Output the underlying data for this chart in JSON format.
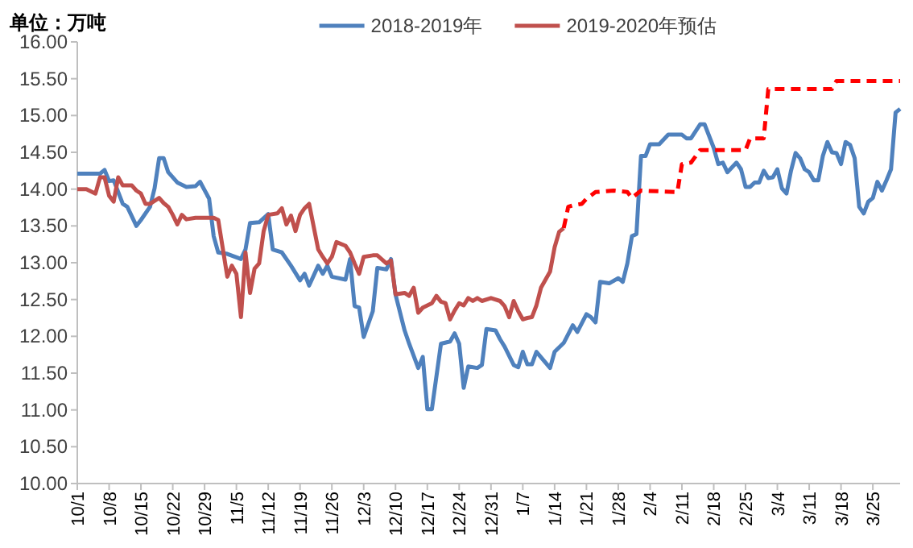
{
  "chart_data": {
    "type": "line",
    "ylabel": "单位：万吨",
    "legend": "top",
    "line_style": "solid",
    "marker": "none",
    "grid": false,
    "xlim": [
      "2018-10-01",
      "2019-03-31"
    ],
    "ylim": [
      10,
      16
    ],
    "yticks": [
      {
        "value": 10,
        "label": "10.00"
      },
      {
        "value": 10.5,
        "label": "10.50"
      },
      {
        "value": 11,
        "label": "11.00"
      },
      {
        "value": 11.5,
        "label": "11.50"
      },
      {
        "value": 12,
        "label": "12.00"
      },
      {
        "value": 12.5,
        "label": "12.50"
      },
      {
        "value": 13,
        "label": "13.00"
      },
      {
        "value": 13.5,
        "label": "13.50"
      },
      {
        "value": 14,
        "label": "14.00"
      },
      {
        "value": 14.5,
        "label": "14.50"
      },
      {
        "value": 15,
        "label": "15.00"
      },
      {
        "value": 15.5,
        "label": "15.50"
      },
      {
        "value": 16,
        "label": "16.00"
      }
    ],
    "xticks": [
      {
        "value": "2018-10-01",
        "label": "10/1"
      },
      {
        "value": "2018-10-08",
        "label": "10/8"
      },
      {
        "value": "2018-10-15",
        "label": "10/15"
      },
      {
        "value": "2018-10-22",
        "label": "10/22"
      },
      {
        "value": "2018-10-29",
        "label": "10/29"
      },
      {
        "value": "2018-11-05",
        "label": "11/5"
      },
      {
        "value": "2018-11-12",
        "label": "11/12"
      },
      {
        "value": "2018-11-19",
        "label": "11/19"
      },
      {
        "value": "2018-11-26",
        "label": "11/26"
      },
      {
        "value": "2018-12-03",
        "label": "12/3"
      },
      {
        "value": "2018-12-10",
        "label": "12/10"
      },
      {
        "value": "2018-12-17",
        "label": "12/17"
      },
      {
        "value": "2018-12-24",
        "label": "12/24"
      },
      {
        "value": "2018-12-31",
        "label": "12/31"
      },
      {
        "value": "2019-01-07",
        "label": "1/7"
      },
      {
        "value": "2019-01-14",
        "label": "1/14"
      },
      {
        "value": "2019-01-21",
        "label": "1/21"
      },
      {
        "value": "2019-01-28",
        "label": "1/28"
      },
      {
        "value": "2019-02-04",
        "label": "2/4"
      },
      {
        "value": "2019-02-11",
        "label": "2/11"
      },
      {
        "value": "2019-02-18",
        "label": "2/18"
      },
      {
        "value": "2019-02-25",
        "label": "2/25"
      },
      {
        "value": "2019-03-04",
        "label": "3/4"
      },
      {
        "value": "2019-03-11",
        "label": "3/11"
      },
      {
        "value": "2019-03-18",
        "label": "3/18"
      },
      {
        "value": "2019-03-25",
        "label": "3/25"
      }
    ],
    "series": [
      {
        "name": "2018-2019年",
        "color": "#4f81bd",
        "x": [
          "2018-10-01",
          "2018-10-06",
          "2018-10-07",
          "2018-10-08",
          "2018-10-09",
          "2018-10-11",
          "2018-10-12",
          "2018-10-14",
          "2018-10-15",
          "2018-10-17",
          "2018-10-18",
          "2018-10-19",
          "2018-10-20",
          "2018-10-21",
          "2018-10-23",
          "2018-10-25",
          "2018-10-27",
          "2018-10-28",
          "2018-10-30",
          "2018-10-31",
          "2018-11-01",
          "2018-11-03",
          "2018-11-06",
          "2018-11-07",
          "2018-11-08",
          "2018-11-10",
          "2018-11-12",
          "2018-11-13",
          "2018-11-15",
          "2018-11-17",
          "2018-11-19",
          "2018-11-20",
          "2018-11-21",
          "2018-11-23",
          "2018-11-24",
          "2018-11-25",
          "2018-11-26",
          "2018-11-29",
          "2018-11-30",
          "2018-12-01",
          "2018-12-02",
          "2018-12-03",
          "2018-12-05",
          "2018-12-06",
          "2018-12-08",
          "2018-12-09",
          "2018-12-10",
          "2018-12-12",
          "2018-12-13",
          "2018-12-15",
          "2018-12-16",
          "2018-12-17",
          "2018-12-18",
          "2018-12-20",
          "2018-12-22",
          "2018-12-23",
          "2018-12-24",
          "2018-12-25",
          "2018-12-26",
          "2018-12-28",
          "2018-12-29",
          "2018-12-30",
          "2019-01-01",
          "2019-01-02",
          "2019-01-03",
          "2019-01-05",
          "2019-01-06",
          "2019-01-07",
          "2019-01-08",
          "2019-01-09",
          "2019-01-10",
          "2019-01-13",
          "2019-01-14",
          "2019-01-16",
          "2019-01-18",
          "2019-01-19",
          "2019-01-21",
          "2019-01-22",
          "2019-01-23",
          "2019-01-24",
          "2019-01-26",
          "2019-01-28",
          "2019-01-29",
          "2019-01-30",
          "2019-01-31",
          "2019-02-01",
          "2019-02-02",
          "2019-02-03",
          "2019-02-04",
          "2019-02-06",
          "2019-02-08",
          "2019-02-11",
          "2019-02-12",
          "2019-02-13",
          "2019-02-15",
          "2019-02-16",
          "2019-02-18",
          "2019-02-19",
          "2019-02-20",
          "2019-02-21",
          "2019-02-23",
          "2019-02-24",
          "2019-02-25",
          "2019-02-26",
          "2019-02-27",
          "2019-02-28",
          "2019-03-01",
          "2019-03-02",
          "2019-03-03",
          "2019-03-04",
          "2019-03-05",
          "2019-03-06",
          "2019-03-07",
          "2019-03-08",
          "2019-03-09",
          "2019-03-10",
          "2019-03-11",
          "2019-03-12",
          "2019-03-13",
          "2019-03-14",
          "2019-03-15",
          "2019-03-16",
          "2019-03-17",
          "2019-03-18",
          "2019-03-19",
          "2019-03-20",
          "2019-03-21",
          "2019-03-22",
          "2019-03-23",
          "2019-03-24",
          "2019-03-25",
          "2019-03-26",
          "2019-03-27",
          "2019-03-28",
          "2019-03-29",
          "2019-03-30",
          "2019-03-31"
        ],
        "values": [
          14.21,
          14.21,
          14.26,
          14.11,
          14.12,
          13.8,
          13.76,
          13.5,
          13.58,
          13.76,
          14.01,
          14.42,
          14.42,
          14.23,
          14.09,
          14.03,
          14.04,
          14.1,
          13.87,
          13.36,
          13.14,
          13.12,
          13.05,
          13.18,
          13.54,
          13.55,
          13.66,
          13.18,
          13.14,
          12.96,
          12.76,
          12.85,
          12.69,
          12.96,
          12.85,
          12.96,
          12.81,
          12.77,
          13.05,
          12.41,
          12.39,
          11.99,
          12.34,
          12.93,
          12.91,
          13.05,
          12.57,
          12.08,
          11.9,
          11.57,
          11.72,
          11.01,
          11.01,
          11.9,
          11.93,
          12.04,
          11.9,
          11.3,
          11.59,
          11.57,
          11.61,
          12.1,
          12.08,
          11.96,
          11.86,
          11.61,
          11.58,
          11.79,
          11.62,
          11.62,
          11.79,
          11.57,
          11.79,
          11.91,
          12.15,
          12.06,
          12.3,
          12.26,
          12.19,
          12.74,
          12.72,
          12.79,
          12.74,
          12.99,
          13.36,
          13.39,
          14.45,
          14.45,
          14.61,
          14.61,
          14.74,
          14.74,
          14.69,
          14.69,
          14.88,
          14.88,
          14.56,
          14.34,
          14.36,
          14.23,
          14.36,
          14.27,
          14.03,
          14.03,
          14.09,
          14.09,
          14.25,
          14.15,
          14.16,
          14.27,
          14.01,
          13.94,
          14.25,
          14.49,
          14.42,
          14.27,
          14.23,
          14.12,
          14.12,
          14.45,
          14.64,
          14.5,
          14.49,
          14.34,
          14.64,
          14.6,
          14.42,
          13.76,
          13.67,
          13.83,
          13.88,
          14.1,
          13.98,
          14.12,
          14.27,
          15.04,
          15.09
        ]
      },
      {
        "name": "2019-2020年预估",
        "color": "#c0504d",
        "x": [
          "2018-10-01",
          "2018-10-03",
          "2018-10-05",
          "2018-10-06",
          "2018-10-07",
          "2018-10-08",
          "2018-10-09",
          "2018-10-10",
          "2018-10-11",
          "2018-10-13",
          "2018-10-14",
          "2018-10-15",
          "2018-10-16",
          "2018-10-17",
          "2018-10-19",
          "2018-10-20",
          "2018-10-21",
          "2018-10-22",
          "2018-10-23",
          "2018-10-24",
          "2018-10-25",
          "2018-10-27",
          "2018-10-31",
          "2018-11-01",
          "2018-11-03",
          "2018-11-04",
          "2018-11-05",
          "2018-11-06",
          "2018-11-07",
          "2018-11-08",
          "2018-11-09",
          "2018-11-10",
          "2018-11-11",
          "2018-11-12",
          "2018-11-14",
          "2018-11-15",
          "2018-11-16",
          "2018-11-17",
          "2018-11-18",
          "2018-11-19",
          "2018-11-20",
          "2018-11-21",
          "2018-11-23",
          "2018-11-24",
          "2018-11-25",
          "2018-11-26",
          "2018-11-27",
          "2018-11-29",
          "2018-11-30",
          "2018-12-01",
          "2018-12-02",
          "2018-12-03",
          "2018-12-05",
          "2018-12-06",
          "2018-12-08",
          "2018-12-09",
          "2018-12-10",
          "2018-12-12",
          "2018-12-13",
          "2018-12-14",
          "2018-12-15",
          "2018-12-16",
          "2018-12-18",
          "2018-12-19",
          "2018-12-20",
          "2018-12-21",
          "2018-12-22",
          "2018-12-23",
          "2018-12-24",
          "2018-12-25",
          "2018-12-26",
          "2018-12-27",
          "2018-12-28",
          "2018-12-29",
          "2018-12-31",
          "2019-01-02",
          "2019-01-03",
          "2019-01-04",
          "2019-01-05",
          "2019-01-06",
          "2019-01-07",
          "2019-01-08",
          "2019-01-09",
          "2019-01-10",
          "2019-01-11",
          "2019-01-13",
          "2019-01-14",
          "2019-01-15",
          "2019-01-16"
        ],
        "values": [
          14.0,
          14.0,
          13.94,
          14.16,
          14.16,
          13.91,
          13.83,
          14.16,
          14.05,
          14.05,
          13.98,
          13.94,
          13.8,
          13.8,
          13.88,
          13.81,
          13.76,
          13.65,
          13.52,
          13.65,
          13.59,
          13.61,
          13.61,
          13.58,
          12.81,
          12.96,
          12.85,
          12.26,
          13.14,
          12.59,
          12.92,
          12.99,
          13.43,
          13.65,
          13.67,
          13.74,
          13.52,
          13.64,
          13.43,
          13.65,
          13.74,
          13.8,
          13.18,
          13.08,
          12.99,
          13.08,
          13.28,
          13.23,
          13.14,
          12.99,
          12.85,
          13.08,
          13.1,
          13.1,
          12.99,
          13.03,
          12.57,
          12.59,
          12.55,
          12.66,
          12.32,
          12.39,
          12.45,
          12.55,
          12.47,
          12.45,
          12.23,
          12.35,
          12.45,
          12.42,
          12.52,
          12.48,
          12.52,
          12.48,
          12.52,
          12.48,
          12.41,
          12.26,
          12.48,
          12.34,
          12.23,
          12.25,
          12.26,
          12.42,
          12.66,
          12.88,
          13.21,
          13.42,
          13.47
        ]
      },
      {
        "color": "#ff0000",
        "line_style": "dashed",
        "x": [
          "2019-01-16",
          "2019-01-17",
          "2019-01-18",
          "2019-01-20",
          "2019-01-21",
          "2019-01-23",
          "2019-01-27",
          "2019-01-30",
          "2019-01-31",
          "2019-02-02",
          "2019-02-10",
          "2019-02-11",
          "2019-02-13",
          "2019-02-15",
          "2019-02-25",
          "2019-02-26",
          "2019-03-01",
          "2019-03-02",
          "2019-03-16",
          "2019-03-17",
          "2019-03-31"
        ],
        "values": [
          13.47,
          13.76,
          13.78,
          13.8,
          13.87,
          13.96,
          13.98,
          13.96,
          13.88,
          13.98,
          13.96,
          14.34,
          14.36,
          14.53,
          14.53,
          14.69,
          14.69,
          15.36,
          15.36,
          15.47,
          15.47
        ]
      }
    ]
  }
}
